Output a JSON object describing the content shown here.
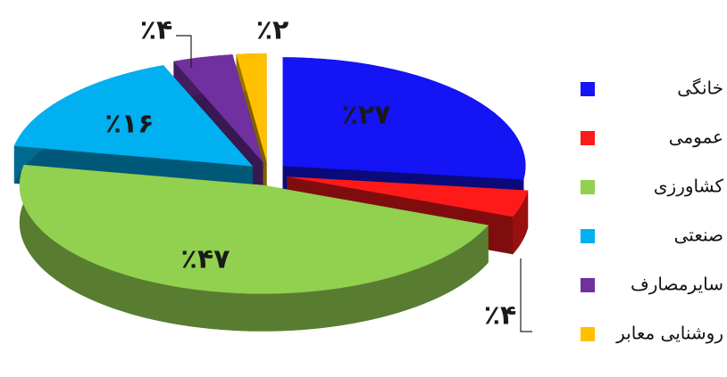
{
  "chart_data": {
    "type": "pie",
    "categories": [
      "خانگی",
      "عمومی",
      "کشاورزی",
      "صنعتی",
      "سایرمصارف",
      "روشنایی معابر"
    ],
    "values": [
      27,
      4,
      47,
      16,
      4,
      2
    ],
    "value_labels": [
      "٪۲۷",
      "٪۴",
      "٪۴۷",
      "٪۱۶",
      "٪۴",
      "٪۲"
    ],
    "colors": [
      "#1414f5",
      "#ff1a1a",
      "#92d050",
      "#00b0f0",
      "#7030a0",
      "#ffc000"
    ],
    "legend": "right"
  }
}
